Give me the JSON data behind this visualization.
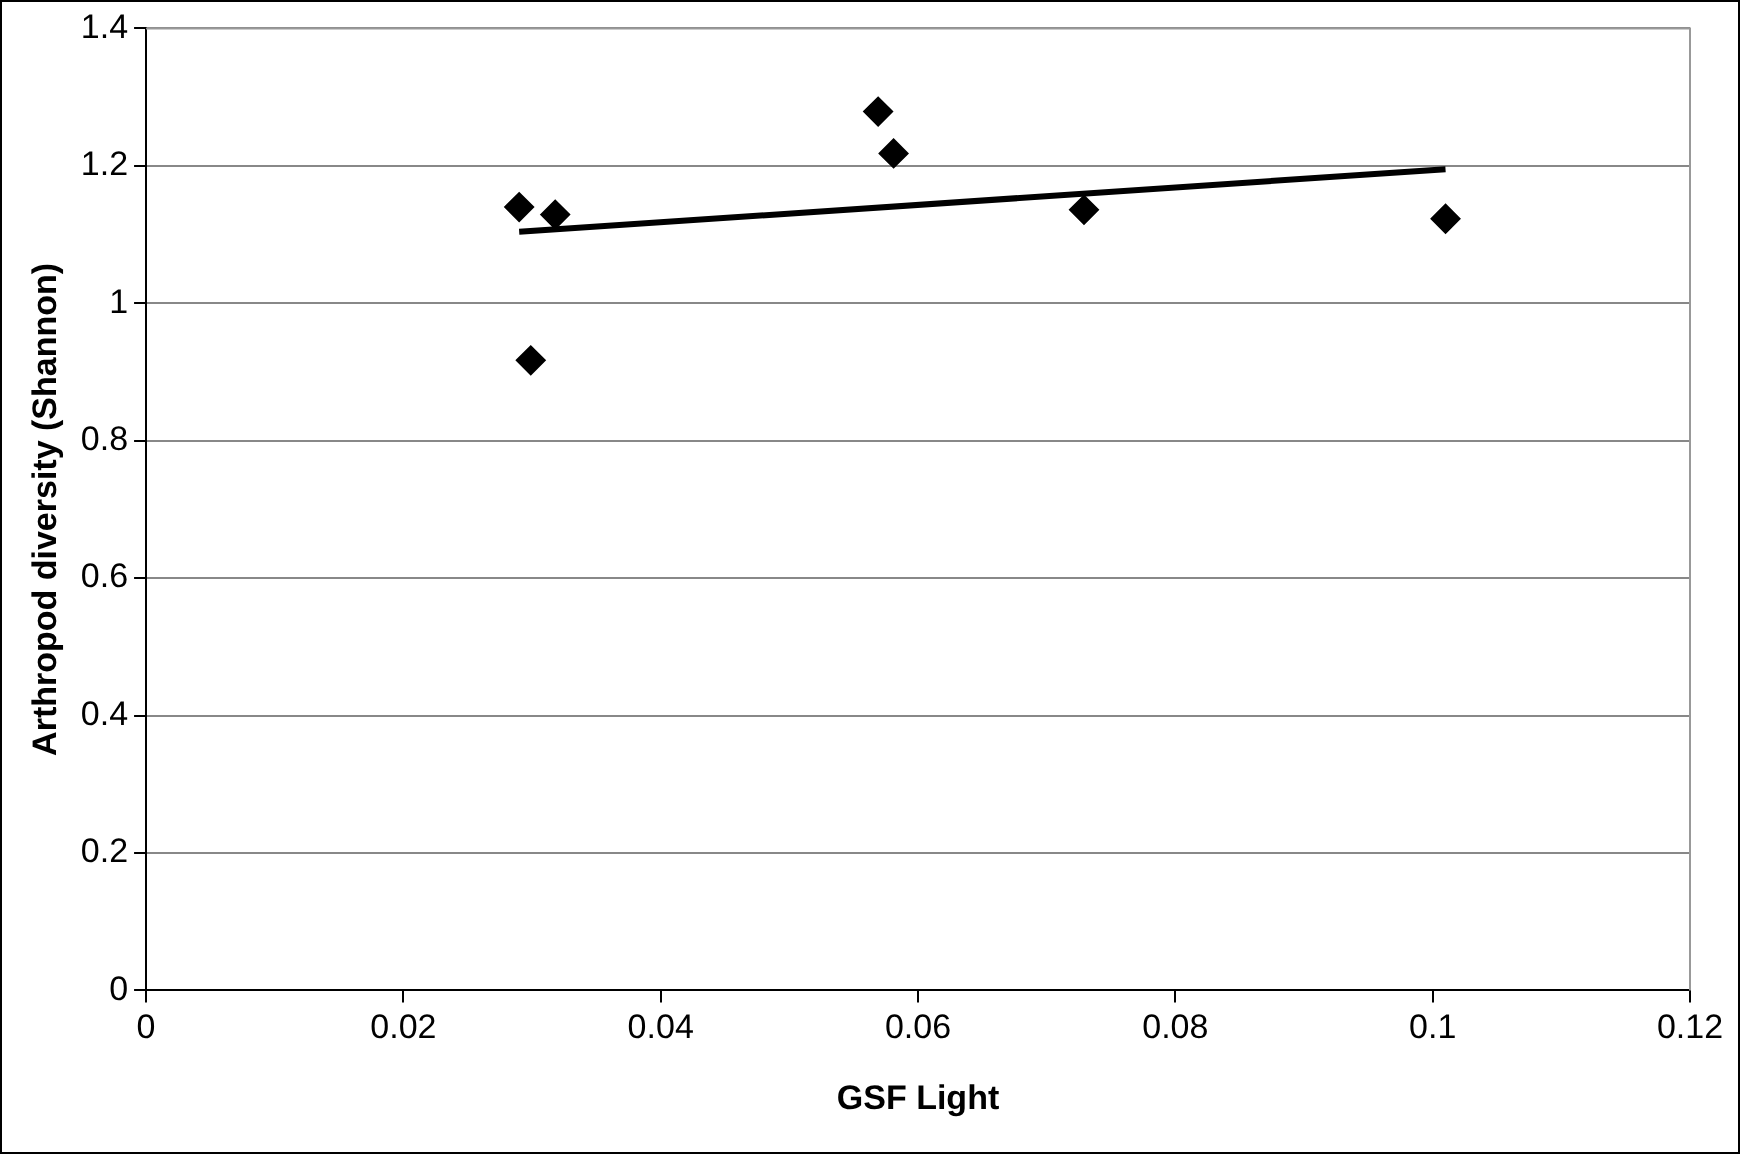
{
  "chart_data": {
    "type": "scatter",
    "xlabel": "GSF Light",
    "ylabel": "Arthropod diversity (Shannon)",
    "xlim": [
      0,
      0.12
    ],
    "xticks": [
      0,
      0.02,
      0.04,
      0.06,
      0.08,
      0.1,
      0.12
    ],
    "ylim": [
      0,
      1.4
    ],
    "yticks": [
      0,
      0.2,
      0.4,
      0.6,
      0.8,
      1,
      1.2,
      1.4
    ],
    "grid": "y",
    "legend": false,
    "marker": "diamond",
    "series": [
      {
        "color": "#000000",
        "x": [
          0.029,
          0.0318,
          0.0299,
          0.0569,
          0.0581,
          0.0729,
          0.101
        ],
        "values": [
          1.14,
          1.129,
          0.917,
          1.279,
          1.218,
          1.136,
          1.123
        ]
      },
      {
        "type": "line",
        "color": "#000000",
        "marker": "none",
        "x": [
          0.029,
          0.101
        ],
        "values": [
          1.104,
          1.195
        ]
      }
    ]
  }
}
